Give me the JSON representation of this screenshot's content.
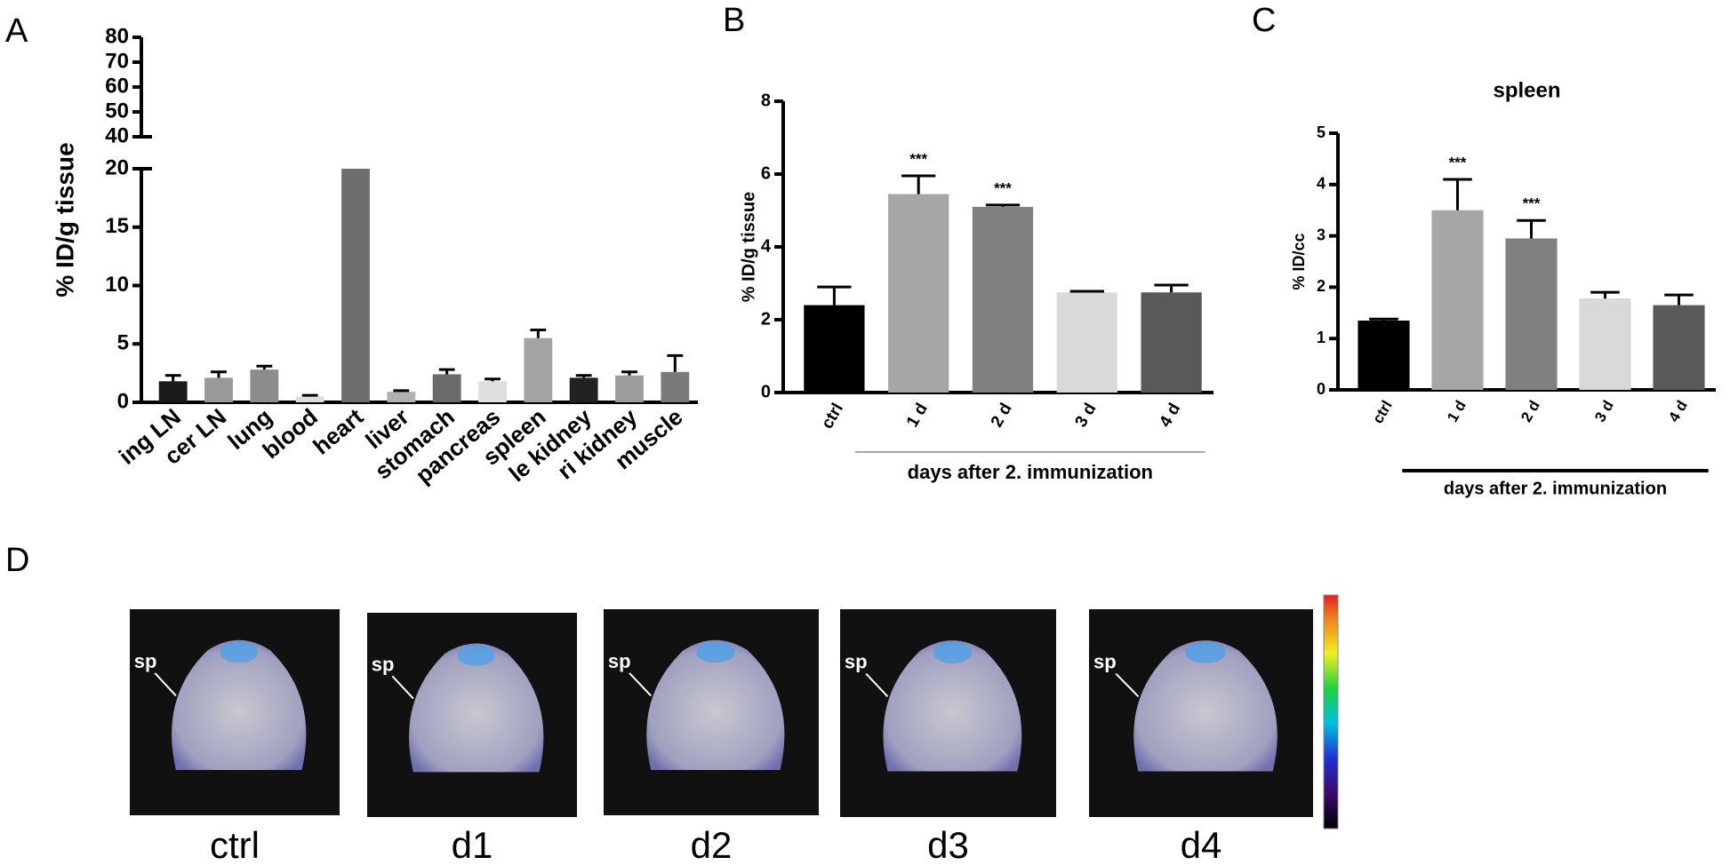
{
  "chart_data": [
    {
      "type": "bar",
      "panel": "A",
      "ylabel": "% ID/g tissue",
      "categories": [
        "ing LN",
        "cer LN",
        "lung",
        "blood",
        "heart",
        "liver",
        "stomach",
        "pancreas",
        "spleen",
        "le kidney",
        "ri kidney",
        "muscle"
      ],
      "values": [
        1.8,
        2.1,
        2.8,
        0.5,
        20,
        0.9,
        2.4,
        1.8,
        5.5,
        2.1,
        2.3,
        2.6
      ],
      "errors": [
        0.5,
        0.5,
        0.3,
        0.1,
        null,
        0.1,
        0.4,
        0.2,
        0.7,
        0.2,
        0.3,
        1.4
      ],
      "colors": [
        "#1a1a1a",
        "#999999",
        "#8c8c8c",
        "#dcdcdc",
        "#6e6e6e",
        "#b0b0b0",
        "#6a6a6a",
        "#dedede",
        "#a3a3a3",
        "#222222",
        "#9c9c9c",
        "#7a7a7a"
      ],
      "ylim": [
        0,
        80
      ],
      "axis_break": [
        20,
        40
      ],
      "yticks": [
        0,
        5,
        10,
        15,
        20,
        40,
        50,
        60,
        70,
        80
      ]
    },
    {
      "type": "bar",
      "panel": "B",
      "ylabel": "% ID/g tissue",
      "xlabel": "days after 2. immunization",
      "categories": [
        "ctrl",
        "1 d",
        "2 d",
        "3 d",
        "4 d"
      ],
      "values": [
        2.4,
        5.45,
        5.1,
        2.75,
        2.75
      ],
      "errors": [
        0.5,
        0.5,
        0.05,
        0.03,
        0.2
      ],
      "significance": [
        null,
        "***",
        "***",
        null,
        null
      ],
      "colors": [
        "#000000",
        "#a6a6a6",
        "#808080",
        "#d9d9d9",
        "#595959"
      ],
      "ylim": [
        0,
        8
      ],
      "yticks": [
        0,
        2,
        4,
        6,
        8
      ]
    },
    {
      "type": "bar",
      "panel": "C",
      "title": "spleen",
      "ylabel": "% ID/cc",
      "xlabel": "days after 2. immunization",
      "categories": [
        "ctrl",
        "1 d",
        "2 d",
        "3 d",
        "4 d"
      ],
      "values": [
        1.35,
        3.5,
        2.95,
        1.78,
        1.65
      ],
      "errors": [
        0.03,
        0.6,
        0.35,
        0.12,
        0.2
      ],
      "significance": [
        null,
        "***",
        "***",
        null,
        null
      ],
      "colors": [
        "#000000",
        "#a6a6a6",
        "#808080",
        "#d9d9d9",
        "#595959"
      ],
      "ylim": [
        0,
        5
      ],
      "yticks": [
        0,
        1,
        2,
        3,
        4,
        5
      ]
    }
  ],
  "panel_d": {
    "panel": "D",
    "images": [
      {
        "label": "ctrl",
        "marker": "sp"
      },
      {
        "label": "d1",
        "marker": "sp"
      },
      {
        "label": "d2",
        "marker": "sp"
      },
      {
        "label": "d3",
        "marker": "sp"
      },
      {
        "label": "d4",
        "marker": "sp"
      }
    ]
  }
}
